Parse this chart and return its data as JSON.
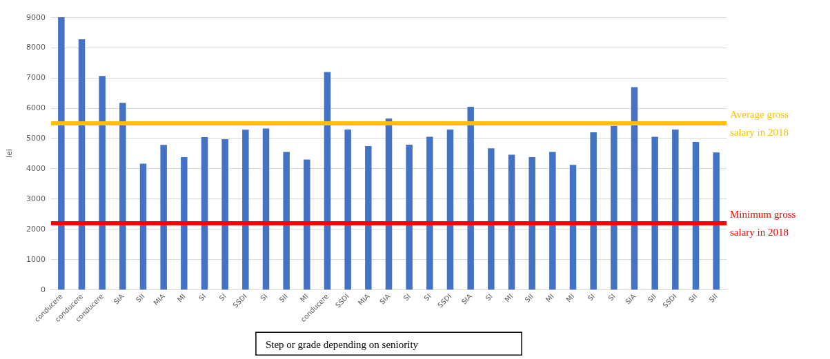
{
  "chart_data": {
    "type": "bar",
    "xlabel": "Step or grade depending on seniority",
    "ylabel": "lei",
    "categories": [
      "conducere",
      "conducere",
      "conducere",
      "SIA",
      "SII",
      "MIA",
      "MI",
      "SI",
      "SI",
      "SSDI",
      "SI",
      "SII",
      "MI",
      "conducere",
      "SSDI",
      "MIA",
      "SIA",
      "SI",
      "SI",
      "SSDI",
      "SIA",
      "SI",
      "MI",
      "SII",
      "MI",
      "MI",
      "SI",
      "SI",
      "SIA",
      "SII",
      "SSDI",
      "SII",
      "SII"
    ],
    "values": [
      9000,
      8270,
      7060,
      6170,
      4160,
      4780,
      4380,
      5040,
      4970,
      5280,
      5320,
      4550,
      4300,
      7190,
      5290,
      4740,
      5650,
      4790,
      5050,
      5290,
      6040,
      4670,
      4460,
      4380,
      4550,
      4120,
      5200,
      5410,
      6690,
      5050,
      5290,
      4880,
      4530
    ],
    "color": "#4472c4",
    "ylim": [
      0,
      9000
    ],
    "yticks": [
      0,
      1000,
      2000,
      3000,
      4000,
      5000,
      6000,
      7000,
      8000,
      9000
    ],
    "grid": "y",
    "ref_lines": [
      {
        "axis": "y",
        "value": 5500,
        "label": "Average gross salary in 2018",
        "color": "#ffc000"
      },
      {
        "axis": "y",
        "value": 2200,
        "label": "Minimum gross salary in 2018",
        "color": "#ff0000"
      }
    ]
  }
}
